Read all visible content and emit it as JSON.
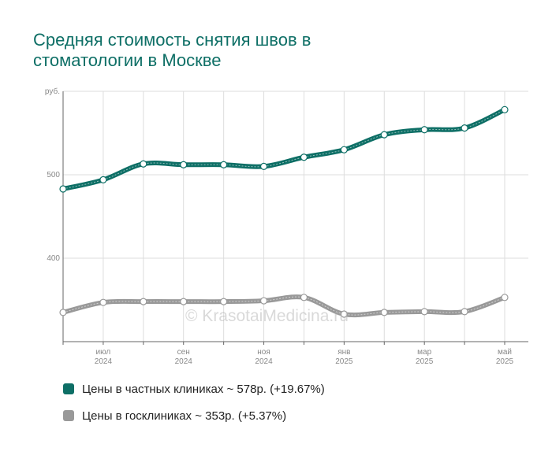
{
  "title_lines": [
    "Средняя стоимость снятия швов в",
    "стоматологии в Москве"
  ],
  "watermark": "© KrasotaiMedicina.ru",
  "chart_data": {
    "type": "line",
    "title": "Средняя стоимость снятия швов в стоматологии в Москве",
    "ylabel": "руб.",
    "ylim": [
      300,
      600
    ],
    "yticks": [
      {
        "value": 600,
        "label": "руб."
      },
      {
        "value": 500,
        "label": "500"
      },
      {
        "value": 400,
        "label": "400"
      }
    ],
    "xticks": [
      {
        "index": 1,
        "line1": "июл",
        "line2": "2024"
      },
      {
        "index": 3,
        "line1": "сен",
        "line2": "2024"
      },
      {
        "index": 5,
        "line1": "ноя",
        "line2": "2024"
      },
      {
        "index": 7,
        "line1": "янв",
        "line2": "2025"
      },
      {
        "index": 9,
        "line1": "мар",
        "line2": "2025"
      },
      {
        "index": 11,
        "line1": "май",
        "line2": "2025"
      }
    ],
    "x": [
      "2024-06",
      "2024-07",
      "2024-08",
      "2024-09",
      "2024-10",
      "2024-11",
      "2024-12",
      "2025-01",
      "2025-02",
      "2025-03",
      "2025-04",
      "2025-05"
    ],
    "series": [
      {
        "name": "Цены в частных клиниках ~ 578р. (+19.67%)",
        "color": "#0e6f66",
        "values": [
          483,
          494,
          513,
          512,
          512,
          510,
          521,
          530,
          548,
          554,
          556,
          578
        ]
      },
      {
        "name": "Цены в госклиниках ~ 353р. (+5.37%)",
        "color": "#999999",
        "values": [
          335,
          347,
          348,
          348,
          348,
          349,
          353,
          333,
          335,
          336,
          336,
          353
        ]
      }
    ],
    "grid": true,
    "legend_position": "bottom-left"
  }
}
